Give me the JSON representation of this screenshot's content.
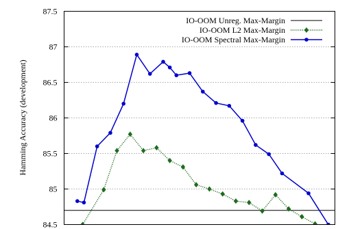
{
  "chart_data": {
    "type": "line",
    "title": "",
    "xlabel": "",
    "ylabel": "Hamming Accuracy (development)",
    "ylim": [
      84.5,
      87.5
    ],
    "yticks": [
      "84.5",
      "85",
      "85.5",
      "86",
      "86.5",
      "87",
      "87.5"
    ],
    "xlim": [
      -2,
      39
    ],
    "grid": "horizontal dotted",
    "legend_position": "top-right",
    "series": [
      {
        "name": "IO-OOM Unreg. Max-Margin",
        "style": "line",
        "color": "#000000",
        "x": [
          -2,
          39
        ],
        "y": [
          84.7,
          84.7
        ]
      },
      {
        "name": "IO-OOM L2 Max-Margin",
        "style": "dotted-diamond",
        "color": "#1f6b1f",
        "x": [
          0.8,
          4,
          6,
          8,
          10,
          12,
          14,
          16,
          18,
          20,
          22,
          24,
          26,
          28,
          30,
          32,
          34,
          36
        ],
        "y": [
          84.5,
          84.99,
          85.54,
          85.77,
          85.54,
          85.58,
          85.4,
          85.31,
          85.06,
          85.0,
          84.93,
          84.83,
          84.81,
          84.69,
          84.92,
          84.72,
          84.61,
          84.51
        ]
      },
      {
        "name": "IO-OOM Spectral Max-Margin",
        "style": "line-circle",
        "color": "#0000cc",
        "x": [
          0,
          1,
          3,
          5,
          7,
          9,
          11,
          13,
          14,
          15,
          17,
          19,
          21,
          23,
          25,
          27,
          29,
          31,
          35,
          38
        ],
        "y": [
          84.83,
          84.81,
          85.6,
          85.79,
          86.2,
          86.89,
          86.62,
          86.79,
          86.71,
          86.6,
          86.63,
          86.37,
          86.21,
          86.17,
          85.96,
          85.62,
          85.49,
          85.22,
          84.94,
          84.5
        ]
      }
    ]
  }
}
